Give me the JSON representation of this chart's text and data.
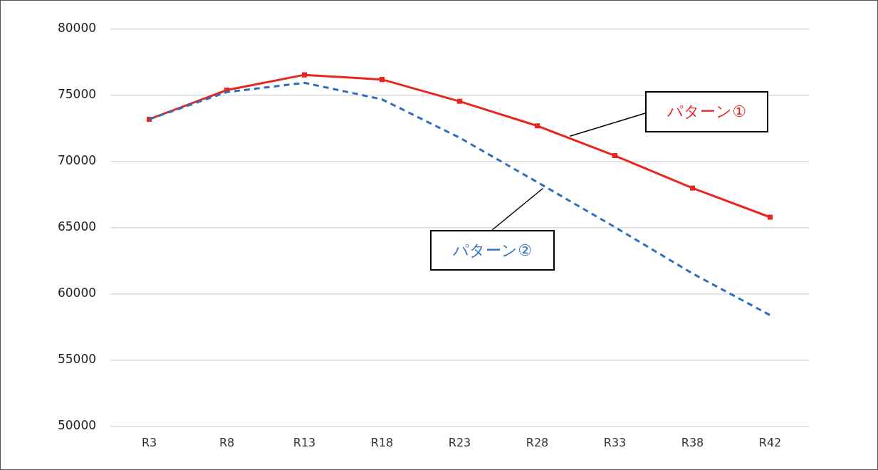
{
  "chart_data": {
    "type": "line",
    "categories": [
      "R3",
      "R8",
      "R13",
      "R18",
      "R23",
      "R28",
      "R33",
      "R38",
      "R42"
    ],
    "ylim": [
      50000,
      80000
    ],
    "yticks": [
      50000,
      55000,
      60000,
      65000,
      70000,
      75000,
      80000
    ],
    "grid": "y",
    "legend": false,
    "series": [
      {
        "name": "パターン①",
        "color": "#e8251f",
        "marker": "square",
        "line_style": "solid",
        "values": [
          73200,
          75400,
          76550,
          76200,
          74550,
          72700,
          70450,
          68000,
          65800
        ]
      },
      {
        "name": "パターン②",
        "color": "#2e6fbd",
        "marker": "none",
        "line_style": "dashed",
        "values": [
          73200,
          75250,
          75950,
          74700,
          71800,
          68450,
          65050,
          61550,
          58400
        ]
      }
    ]
  }
}
